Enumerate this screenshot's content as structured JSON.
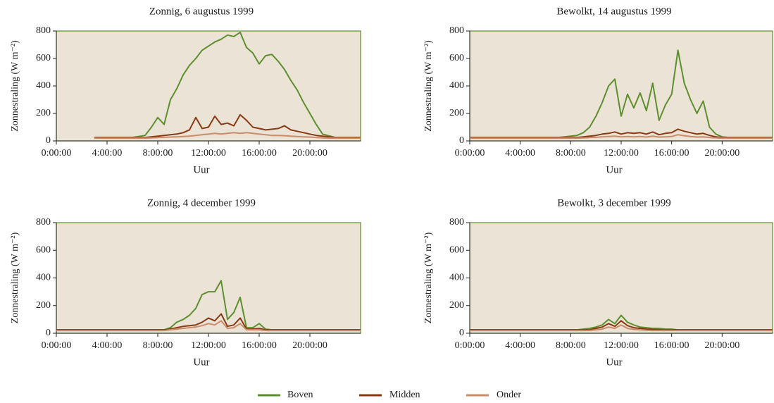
{
  "chart_data": [
    {
      "type": "line",
      "title": "Zonnig, 6 augustus 1999",
      "xlabel": "Uur",
      "ylabel": "Zonnestraling (W m⁻²)",
      "x": [
        0,
        1,
        2,
        3,
        4,
        5,
        6,
        7,
        7.5,
        8,
        8.5,
        9,
        9.5,
        10,
        10.5,
        11,
        11.5,
        12,
        12.5,
        13,
        13.5,
        14,
        14.5,
        15,
        15.5,
        16,
        16.5,
        17,
        17.5,
        18,
        18.5,
        19,
        19.5,
        20,
        20.5,
        21,
        22,
        23,
        24
      ],
      "xlim": [
        0,
        24
      ],
      "xticks": [
        {
          "value": 0,
          "label": "0:00:00"
        },
        {
          "value": 4,
          "label": "4:00:00"
        },
        {
          "value": 8,
          "label": "8:00:00"
        },
        {
          "value": 12,
          "label": "12:00:00"
        },
        {
          "value": 16,
          "label": "16:00:00"
        },
        {
          "value": 20,
          "label": "20:00:00"
        }
      ],
      "ylim": [
        0,
        800
      ],
      "yticks": [
        0,
        200,
        400,
        600,
        800
      ],
      "series": [
        {
          "name": "Boven",
          "color": "#5e8f2f",
          "values": [
            null,
            null,
            null,
            25,
            25,
            25,
            25,
            40,
            100,
            170,
            120,
            300,
            380,
            480,
            550,
            600,
            660,
            690,
            720,
            740,
            770,
            760,
            790,
            680,
            640,
            560,
            620,
            630,
            580,
            520,
            440,
            370,
            280,
            200,
            120,
            50,
            25,
            25,
            25
          ]
        },
        {
          "name": "Midden",
          "color": "#8a3a12",
          "values": [
            null,
            null,
            null,
            25,
            25,
            25,
            25,
            25,
            30,
            35,
            40,
            45,
            50,
            60,
            80,
            170,
            90,
            100,
            180,
            120,
            130,
            110,
            190,
            150,
            100,
            90,
            80,
            85,
            90,
            110,
            80,
            70,
            60,
            50,
            40,
            35,
            25,
            25,
            25
          ]
        },
        {
          "name": "Onder",
          "color": "#c98d6c",
          "values": [
            null,
            null,
            null,
            20,
            20,
            20,
            20,
            20,
            22,
            24,
            26,
            28,
            30,
            32,
            35,
            40,
            45,
            50,
            55,
            50,
            55,
            60,
            55,
            60,
            55,
            50,
            45,
            40,
            40,
            38,
            35,
            32,
            30,
            28,
            25,
            22,
            20,
            20,
            20
          ]
        }
      ]
    },
    {
      "type": "line",
      "title": "Bewolkt, 14 augustus 1999",
      "xlabel": "Uur",
      "ylabel": "Zonnestraling (W m⁻²)",
      "x": [
        0,
        1,
        2,
        3,
        4,
        5,
        6,
        7,
        7.5,
        8,
        8.5,
        9,
        9.5,
        10,
        10.5,
        11,
        11.5,
        12,
        12.5,
        13,
        13.5,
        14,
        14.5,
        15,
        15.5,
        16,
        16.5,
        17,
        17.5,
        18,
        18.5,
        19,
        19.5,
        20,
        20.5,
        21,
        22,
        23,
        24
      ],
      "xlim": [
        0,
        24
      ],
      "xticks": [
        {
          "value": 0,
          "label": "0:00:00"
        },
        {
          "value": 4,
          "label": "4:00:00"
        },
        {
          "value": 8,
          "label": "8:00:00"
        },
        {
          "value": 12,
          "label": "12:00:00"
        },
        {
          "value": 16,
          "label": "16:00:00"
        },
        {
          "value": 20,
          "label": "20:00:00"
        }
      ],
      "ylim": [
        0,
        800
      ],
      "yticks": [
        0,
        200,
        400,
        600,
        800
      ],
      "series": [
        {
          "name": "Boven",
          "color": "#5e8f2f",
          "values": [
            25,
            25,
            25,
            25,
            25,
            25,
            25,
            25,
            30,
            35,
            40,
            60,
            100,
            180,
            280,
            400,
            450,
            180,
            340,
            240,
            350,
            220,
            420,
            150,
            260,
            340,
            660,
            420,
            300,
            200,
            290,
            100,
            50,
            30,
            25,
            25,
            25,
            25,
            25
          ]
        },
        {
          "name": "Midden",
          "color": "#8a3a12",
          "values": [
            25,
            25,
            25,
            25,
            25,
            25,
            25,
            25,
            25,
            25,
            25,
            30,
            35,
            40,
            50,
            55,
            65,
            50,
            60,
            55,
            60,
            50,
            65,
            45,
            55,
            60,
            85,
            70,
            60,
            50,
            55,
            40,
            30,
            25,
            25,
            25,
            25,
            25,
            25
          ]
        },
        {
          "name": "Onder",
          "color": "#c98d6c",
          "values": [
            20,
            20,
            20,
            20,
            20,
            20,
            20,
            20,
            20,
            20,
            20,
            22,
            24,
            26,
            30,
            32,
            35,
            30,
            32,
            30,
            32,
            28,
            35,
            28,
            30,
            32,
            45,
            38,
            32,
            28,
            30,
            25,
            22,
            20,
            20,
            20,
            20,
            20,
            20
          ]
        }
      ]
    },
    {
      "type": "line",
      "title": "Zonnig, 4 december 1999",
      "xlabel": "Uur",
      "ylabel": "Zonnestraling (W m⁻²)",
      "x": [
        0,
        1,
        2,
        3,
        4,
        5,
        6,
        7,
        7.5,
        8,
        8.5,
        9,
        9.5,
        10,
        10.5,
        11,
        11.5,
        12,
        12.5,
        13,
        13.5,
        14,
        14.5,
        15,
        15.5,
        16,
        16.5,
        17,
        17.5,
        18,
        18.5,
        19,
        19.5,
        20,
        20.5,
        21,
        22,
        23,
        24
      ],
      "xlim": [
        0,
        24
      ],
      "xticks": [
        {
          "value": 0,
          "label": "0:00:00"
        },
        {
          "value": 4,
          "label": "4:00:00"
        },
        {
          "value": 8,
          "label": "8:00:00"
        },
        {
          "value": 12,
          "label": "12:00:00"
        },
        {
          "value": 16,
          "label": "16:00:00"
        },
        {
          "value": 20,
          "label": "20:00:00"
        }
      ],
      "ylim": [
        0,
        800
      ],
      "yticks": [
        0,
        200,
        400,
        600,
        800
      ],
      "series": [
        {
          "name": "Boven",
          "color": "#5e8f2f",
          "values": [
            25,
            25,
            25,
            25,
            25,
            25,
            25,
            25,
            25,
            25,
            25,
            40,
            80,
            100,
            130,
            180,
            280,
            300,
            300,
            380,
            100,
            150,
            260,
            40,
            40,
            70,
            30,
            25,
            25,
            25,
            25,
            25,
            25,
            25,
            25,
            25,
            25,
            25,
            25
          ]
        },
        {
          "name": "Midden",
          "color": "#8a3a12",
          "values": [
            25,
            25,
            25,
            25,
            25,
            25,
            25,
            25,
            25,
            25,
            25,
            30,
            40,
            50,
            55,
            60,
            80,
            110,
            90,
            140,
            50,
            60,
            110,
            30,
            30,
            35,
            25,
            25,
            25,
            25,
            25,
            25,
            25,
            25,
            25,
            25,
            25,
            25,
            25
          ]
        },
        {
          "name": "Onder",
          "color": "#c98d6c",
          "values": [
            20,
            20,
            20,
            20,
            20,
            20,
            20,
            20,
            20,
            20,
            20,
            25,
            30,
            35,
            40,
            45,
            55,
            70,
            60,
            90,
            35,
            40,
            70,
            25,
            25,
            25,
            20,
            20,
            20,
            20,
            20,
            20,
            20,
            20,
            20,
            20,
            20,
            20,
            20
          ]
        }
      ]
    },
    {
      "type": "line",
      "title": "Bewolkt, 3 december 1999",
      "xlabel": "Uur",
      "ylabel": "Zonnestraling (W m⁻²)",
      "x": [
        0,
        1,
        2,
        3,
        4,
        5,
        6,
        7,
        7.5,
        8,
        8.5,
        9,
        9.5,
        10,
        10.5,
        11,
        11.5,
        12,
        12.5,
        13,
        13.5,
        14,
        14.5,
        15,
        15.5,
        16,
        16.5,
        17,
        17.5,
        18,
        18.5,
        19,
        19.5,
        20,
        20.5,
        21,
        22,
        23,
        24
      ],
      "xlim": [
        0,
        24
      ],
      "xticks": [
        {
          "value": 0,
          "label": "0:00:00"
        },
        {
          "value": 4,
          "label": "4:00:00"
        },
        {
          "value": 8,
          "label": "8:00:00"
        },
        {
          "value": 12,
          "label": "12:00:00"
        },
        {
          "value": 16,
          "label": "16:00:00"
        },
        {
          "value": 20,
          "label": "20:00:00"
        }
      ],
      "ylim": [
        0,
        800
      ],
      "yticks": [
        0,
        200,
        400,
        600,
        800
      ],
      "series": [
        {
          "name": "Boven",
          "color": "#5e8f2f",
          "values": [
            25,
            25,
            25,
            25,
            25,
            25,
            25,
            25,
            25,
            25,
            25,
            30,
            35,
            45,
            60,
            100,
            70,
            130,
            80,
            60,
            45,
            40,
            35,
            35,
            30,
            30,
            25,
            25,
            25,
            25,
            25,
            25,
            25,
            25,
            25,
            25,
            25,
            25,
            25
          ]
        },
        {
          "name": "Midden",
          "color": "#8a3a12",
          "values": [
            25,
            25,
            25,
            25,
            25,
            25,
            25,
            25,
            25,
            25,
            25,
            25,
            25,
            35,
            45,
            70,
            50,
            90,
            55,
            40,
            35,
            30,
            28,
            26,
            25,
            25,
            25,
            25,
            25,
            25,
            25,
            25,
            25,
            25,
            25,
            25,
            25,
            25,
            25
          ]
        },
        {
          "name": "Onder",
          "color": "#c98d6c",
          "values": [
            20,
            20,
            20,
            20,
            20,
            20,
            20,
            20,
            20,
            20,
            20,
            20,
            20,
            25,
            30,
            45,
            35,
            60,
            35,
            28,
            25,
            22,
            20,
            20,
            20,
            20,
            20,
            20,
            20,
            20,
            20,
            20,
            20,
            20,
            20,
            20,
            20,
            20,
            20
          ]
        }
      ]
    }
  ]
}
